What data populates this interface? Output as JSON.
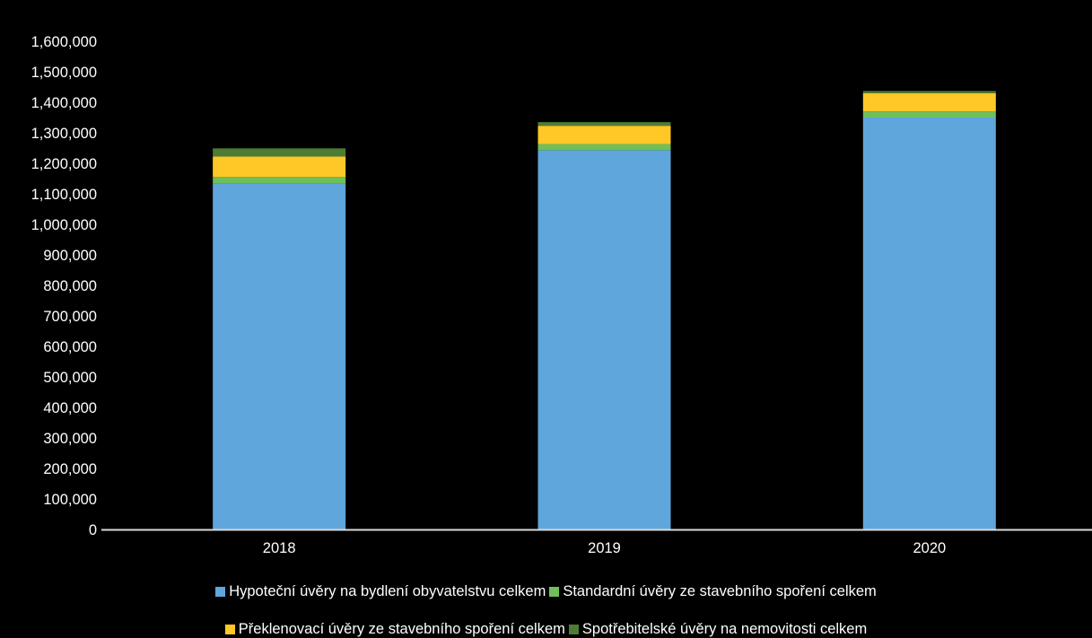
{
  "chart_data": {
    "type": "bar",
    "stacked": true,
    "categories": [
      "2018",
      "2019",
      "2020"
    ],
    "ylim": [
      0,
      1600000
    ],
    "yticks": [
      "0",
      "100,000",
      "200,000",
      "300,000",
      "400,000",
      "500,000",
      "600,000",
      "700,000",
      "800,000",
      "900,000",
      "1,000,000",
      "1,100,000",
      "1,200,000",
      "1,300,000",
      "1,400,000",
      "1,500,000",
      "1,600,000"
    ],
    "grid": false,
    "legend_position": "bottom",
    "series": [
      {
        "name": "Hypoteční úvěry na bydlení obyvatelstvu celkem",
        "color": "#5fa6dc",
        "values": [
          1135000,
          1243000,
          1350000
        ]
      },
      {
        "name": "Standardní úvěry ze stavebního spoření celkem",
        "color": "#6fbf5a",
        "values": [
          20000,
          20000,
          20000
        ]
      },
      {
        "name": "Překlenovací úvěry ze stavebního spoření celkem",
        "color": "#ffc826",
        "values": [
          67000,
          60000,
          60000
        ]
      },
      {
        "name": "Spotřebitelské úvěry na nemovitosti celkem",
        "color": "#4f7c34",
        "values": [
          27000,
          12000,
          7000
        ]
      }
    ]
  }
}
